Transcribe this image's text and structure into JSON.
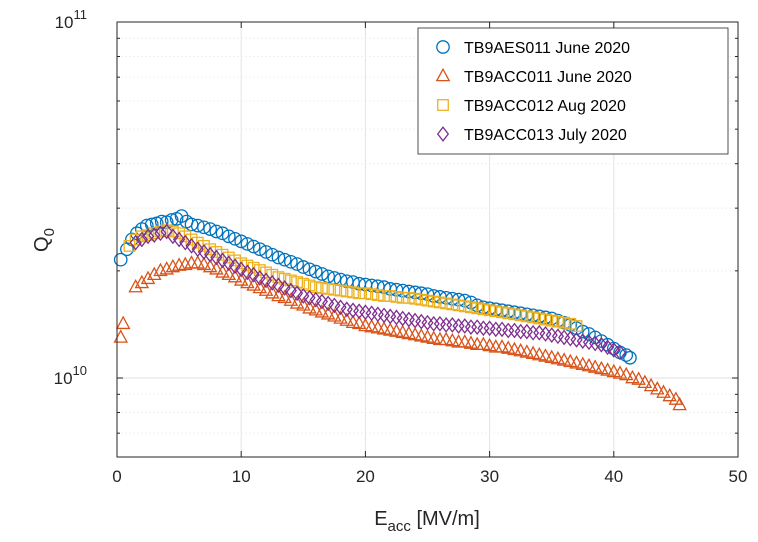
{
  "chart_data": {
    "type": "scatter",
    "xlabel_main": "E",
    "xlabel_sub": "acc",
    "xlabel_unit": " [MV/m]",
    "ylabel_main": "Q",
    "ylabel_sub": "0",
    "xlim": [
      0,
      50
    ],
    "ylim": [
      6000000000.0,
      100000000000.0
    ],
    "yscale": "log",
    "grid": true,
    "legend_position": "top-right",
    "x_ticks": [
      {
        "value": 0,
        "label": "0"
      },
      {
        "value": 10,
        "label": "10"
      },
      {
        "value": 20,
        "label": "20"
      },
      {
        "value": 30,
        "label": "30"
      },
      {
        "value": 40,
        "label": "40"
      },
      {
        "value": 50,
        "label": "50"
      }
    ],
    "y_ticks": [
      {
        "value": 10000000000.0,
        "base": "10",
        "exp": "10"
      },
      {
        "value": 100000000000.0,
        "base": "10",
        "exp": "11"
      }
    ],
    "series": [
      {
        "name": "TB9AES011 June 2020",
        "marker": "circle",
        "color": "#0072BD",
        "x": [
          0.3,
          0.8,
          1.2,
          1.6,
          2.0,
          2.4,
          2.8,
          3.2,
          3.6,
          4.0,
          4.4,
          4.8,
          5.2,
          5.6,
          6.0,
          6.5,
          7.0,
          7.5,
          8.0,
          8.5,
          9.0,
          9.5,
          10.0,
          10.5,
          11.0,
          11.5,
          12.0,
          12.5,
          13.0,
          13.5,
          14.0,
          14.5,
          15.0,
          15.5,
          16.0,
          16.5,
          17.0,
          17.5,
          18.0,
          18.5,
          19.0,
          19.5,
          20.0,
          20.5,
          21.0,
          21.5,
          22.0,
          22.5,
          23.0,
          23.5,
          24.0,
          24.5,
          25.0,
          25.5,
          26.0,
          26.5,
          27.0,
          27.5,
          28.0,
          28.5,
          29.0,
          29.5,
          30.0,
          30.5,
          31.0,
          31.5,
          32.0,
          32.5,
          33.0,
          33.5,
          34.0,
          34.5,
          35.0,
          35.5,
          36.0,
          36.5,
          37.0,
          37.5,
          38.0,
          38.5,
          39.0,
          39.5,
          40.0,
          40.5,
          41.0,
          41.3
        ],
        "y": [
          21500000000.0,
          23000000000.0,
          24500000000.0,
          25500000000.0,
          26200000000.0,
          26800000000.0,
          27000000000.0,
          27200000000.0,
          27500000000.0,
          27400000000.0,
          27800000000.0,
          28000000000.0,
          28500000000.0,
          27500000000.0,
          27000000000.0,
          26800000000.0,
          26500000000.0,
          26200000000.0,
          25800000000.0,
          25500000000.0,
          25000000000.0,
          24600000000.0,
          24200000000.0,
          23800000000.0,
          23400000000.0,
          23000000000.0,
          22600000000.0,
          22200000000.0,
          21800000000.0,
          21500000000.0,
          21200000000.0,
          20900000000.0,
          20500000000.0,
          20200000000.0,
          19900000000.0,
          19600000000.0,
          19300000000.0,
          19100000000.0,
          18900000000.0,
          18700000000.0,
          18600000000.0,
          18400000000.0,
          18300000000.0,
          18200000000.0,
          18100000000.0,
          18000000000.0,
          17800000000.0,
          17700000000.0,
          17600000000.0,
          17500000000.0,
          17400000000.0,
          17300000000.0,
          17200000000.0,
          17000000000.0,
          16900000000.0,
          16800000000.0,
          16700000000.0,
          16600000000.0,
          16500000000.0,
          16300000000.0,
          16000000000.0,
          15800000000.0,
          15700000000.0,
          15600000000.0,
          15500000000.0,
          15400000000.0,
          15300000000.0,
          15200000000.0,
          15100000000.0,
          15000000000.0,
          14900000000.0,
          14800000000.0,
          14700000000.0,
          14500000000.0,
          14300000000.0,
          14100000000.0,
          13800000000.0,
          13500000000.0,
          13300000000.0,
          13000000000.0,
          12700000000.0,
          12400000000.0,
          12100000000.0,
          11800000000.0,
          11600000000.0,
          11400000000.0
        ]
      },
      {
        "name": "TB9ACC011 June 2020",
        "marker": "triangle",
        "color": "#D95319",
        "x": [
          0.3,
          0.5,
          1.5,
          2.0,
          2.5,
          3.0,
          3.5,
          4.0,
          4.5,
          5.0,
          5.5,
          6.0,
          6.5,
          7.0,
          7.5,
          8.0,
          8.5,
          9.0,
          9.5,
          10.0,
          10.5,
          11.0,
          11.5,
          12.0,
          12.5,
          13.0,
          13.5,
          14.0,
          14.5,
          15.0,
          15.5,
          16.0,
          16.5,
          17.0,
          17.5,
          18.0,
          18.5,
          19.0,
          19.5,
          20.0,
          20.5,
          21.0,
          21.5,
          22.0,
          22.5,
          23.0,
          23.5,
          24.0,
          24.5,
          25.0,
          25.5,
          26.0,
          26.5,
          27.0,
          27.5,
          28.0,
          28.5,
          29.0,
          29.5,
          30.0,
          30.5,
          31.0,
          31.5,
          32.0,
          32.5,
          33.0,
          33.5,
          34.0,
          34.5,
          35.0,
          35.5,
          36.0,
          36.5,
          37.0,
          37.5,
          38.0,
          38.5,
          39.0,
          39.5,
          40.0,
          40.5,
          41.0,
          41.5,
          42.0,
          42.5,
          43.0,
          43.5,
          44.0,
          44.5,
          45.0,
          45.3
        ],
        "y": [
          13000000000.0,
          14200000000.0,
          18000000000.0,
          18500000000.0,
          19000000000.0,
          19500000000.0,
          20000000000.0,
          20200000000.0,
          20500000000.0,
          20700000000.0,
          20800000000.0,
          21000000000.0,
          21000000000.0,
          20800000000.0,
          20500000000.0,
          20200000000.0,
          19800000000.0,
          19500000000.0,
          19200000000.0,
          18800000000.0,
          18500000000.0,
          18200000000.0,
          17900000000.0,
          17600000000.0,
          17300000000.0,
          17000000000.0,
          16800000000.0,
          16500000000.0,
          16200000000.0,
          16000000000.0,
          15700000000.0,
          15500000000.0,
          15300000000.0,
          15100000000.0,
          14900000000.0,
          14700000000.0,
          14500000000.0,
          14300000000.0,
          14200000000.0,
          14000000000.0,
          13900000000.0,
          13800000000.0,
          13700000000.0,
          13600000000.0,
          13500000000.0,
          13400000000.0,
          13300000000.0,
          13200000000.0,
          13100000000.0,
          13000000000.0,
          12900000000.0,
          12800000000.0,
          12800000000.0,
          12700000000.0,
          12600000000.0,
          12600000000.0,
          12500000000.0,
          12400000000.0,
          12400000000.0,
          12300000000.0,
          12200000000.0,
          12200000000.0,
          12100000000.0,
          12000000000.0,
          11900000000.0,
          11800000000.0,
          11700000000.0,
          11600000000.0,
          11500000000.0,
          11400000000.0,
          11300000000.0,
          11200000000.0,
          11100000000.0,
          11000000000.0,
          10900000000.0,
          10800000000.0,
          10700000000.0,
          10600000000.0,
          10500000000.0,
          10400000000.0,
          10300000000.0,
          10200000000.0,
          10000000000.0,
          9900000000.0,
          9700000000.0,
          9500000000.0,
          9300000000.0,
          9100000000.0,
          8900000000.0,
          8700000000.0,
          8400000000.0
        ]
      },
      {
        "name": "TB9ACC012 Aug 2020",
        "marker": "square",
        "color": "#EDB120",
        "x": [
          1.0,
          1.5,
          2.0,
          2.5,
          3.0,
          3.5,
          4.0,
          4.5,
          5.0,
          5.5,
          6.0,
          6.5,
          7.0,
          7.5,
          8.0,
          8.5,
          9.0,
          9.5,
          10.0,
          10.5,
          11.0,
          11.5,
          12.0,
          12.5,
          13.0,
          13.5,
          14.0,
          14.5,
          15.0,
          15.5,
          16.0,
          16.5,
          17.0,
          17.5,
          18.0,
          18.5,
          19.0,
          19.5,
          20.0,
          20.5,
          21.0,
          21.5,
          22.0,
          22.5,
          23.0,
          23.5,
          24.0,
          24.5,
          25.0,
          25.5,
          26.0,
          26.5,
          27.0,
          27.5,
          28.0,
          28.5,
          29.0,
          29.5,
          30.0,
          30.5,
          31.0,
          31.5,
          32.0,
          32.5,
          33.0,
          33.5,
          34.0,
          34.5,
          35.0,
          35.5,
          36.0,
          36.5,
          37.0
        ],
        "y": [
          23500000000.0,
          24500000000.0,
          25000000000.0,
          25200000000.0,
          25500000000.0,
          25800000000.0,
          26000000000.0,
          25800000000.0,
          25500000000.0,
          25000000000.0,
          24500000000.0,
          24000000000.0,
          23500000000.0,
          23000000000.0,
          22600000000.0,
          22200000000.0,
          21800000000.0,
          21400000000.0,
          21000000000.0,
          20700000000.0,
          20400000000.0,
          20100000000.0,
          19800000000.0,
          19500000000.0,
          19200000000.0,
          19000000000.0,
          18800000000.0,
          18600000000.0,
          18400000000.0,
          18200000000.0,
          18000000000.0,
          17900000000.0,
          17800000000.0,
          17700000000.0,
          17600000000.0,
          17500000000.0,
          17400000000.0,
          17300000000.0,
          17300000000.0,
          17200000000.0,
          17100000000.0,
          17000000000.0,
          17000000000.0,
          16900000000.0,
          16800000000.0,
          16800000000.0,
          16700000000.0,
          16600000000.0,
          16500000000.0,
          16400000000.0,
          16300000000.0,
          16200000000.0,
          16100000000.0,
          16000000000.0,
          15900000000.0,
          15800000000.0,
          15700000000.0,
          15600000000.0,
          15500000000.0,
          15400000000.0,
          15300000000.0,
          15200000000.0,
          15100000000.0,
          15000000000.0,
          14900000000.0,
          14800000000.0,
          14700000000.0,
          14600000000.0,
          14500000000.0,
          14400000000.0,
          14300000000.0,
          14200000000.0,
          14000000000.0
        ]
      },
      {
        "name": "TB9ACC013 July 2020",
        "marker": "diamond",
        "color": "#7E2F8E",
        "x": [
          1.5,
          2.0,
          2.5,
          3.0,
          3.5,
          4.0,
          4.5,
          5.0,
          5.5,
          6.0,
          6.5,
          7.0,
          7.5,
          8.0,
          8.5,
          9.0,
          9.5,
          10.0,
          10.5,
          11.0,
          11.5,
          12.0,
          12.5,
          13.0,
          13.5,
          14.0,
          14.5,
          15.0,
          15.5,
          16.0,
          16.5,
          17.0,
          17.5,
          18.0,
          18.5,
          19.0,
          19.5,
          20.0,
          20.5,
          21.0,
          21.5,
          22.0,
          22.5,
          23.0,
          23.5,
          24.0,
          24.5,
          25.0,
          25.5,
          26.0,
          26.5,
          27.0,
          27.5,
          28.0,
          28.5,
          29.0,
          29.5,
          30.0,
          30.5,
          31.0,
          31.5,
          32.0,
          32.5,
          33.0,
          33.5,
          34.0,
          34.5,
          35.0,
          35.5,
          36.0,
          36.5,
          37.0,
          37.5,
          38.0,
          38.5,
          39.0,
          39.5,
          40.0,
          40.5
        ],
        "y": [
          24000000000.0,
          24500000000.0,
          25000000000.0,
          25200000000.0,
          25500000000.0,
          25800000000.0,
          25000000000.0,
          24500000000.0,
          24000000000.0,
          23500000000.0,
          23000000000.0,
          22600000000.0,
          22200000000.0,
          21800000000.0,
          21400000000.0,
          21000000000.0,
          20600000000.0,
          20200000000.0,
          19800000000.0,
          19500000000.0,
          19100000000.0,
          18800000000.0,
          18500000000.0,
          18200000000.0,
          17900000000.0,
          17600000000.0,
          17300000000.0,
          17000000000.0,
          16800000000.0,
          16600000000.0,
          16400000000.0,
          16200000000.0,
          16000000000.0,
          15800000000.0,
          15600000000.0,
          15500000000.0,
          15400000000.0,
          15300000000.0,
          15200000000.0,
          15100000000.0,
          15000000000.0,
          14900000000.0,
          14800000000.0,
          14700000000.0,
          14600000000.0,
          14500000000.0,
          14400000000.0,
          14300000000.0,
          14200000000.0,
          14200000000.0,
          14100000000.0,
          14100000000.0,
          14000000000.0,
          14000000000.0,
          13900000000.0,
          13900000000.0,
          13800000000.0,
          13800000000.0,
          13700000000.0,
          13700000000.0,
          13600000000.0,
          13600000000.0,
          13500000000.0,
          13500000000.0,
          13400000000.0,
          13400000000.0,
          13300000000.0,
          13200000000.0,
          13100000000.0,
          13000000000.0,
          12900000000.0,
          12800000000.0,
          12700000000.0,
          12600000000.0,
          12500000000.0,
          12400000000.0,
          12200000000.0,
          12000000000.0,
          11800000000.0
        ]
      }
    ]
  }
}
